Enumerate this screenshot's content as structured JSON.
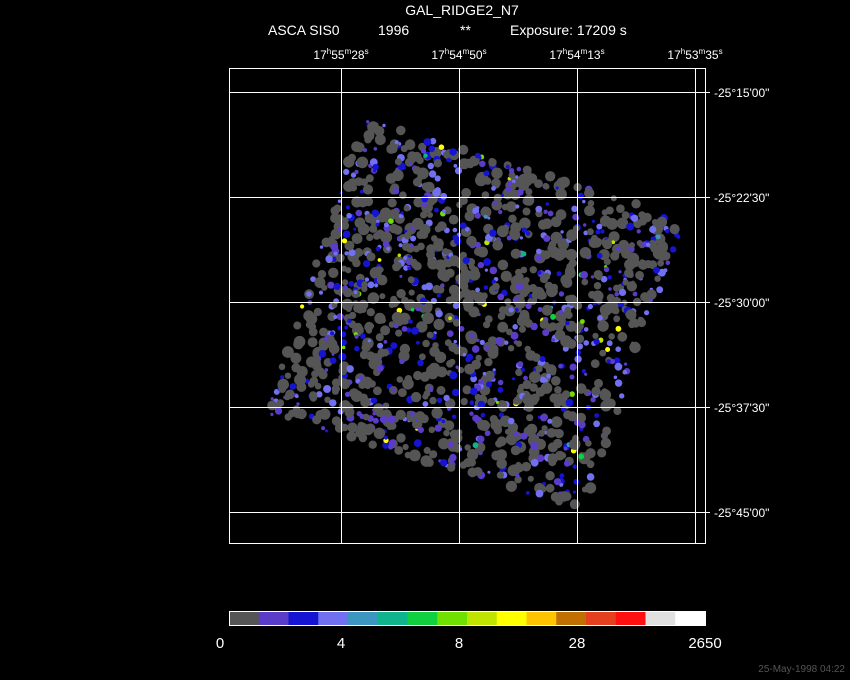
{
  "header": {
    "title": "GAL_RIDGE2_N7",
    "instrument": "ASCA SIS0",
    "year": "1996",
    "marker": "**",
    "exposure": "Exposure: 17209 s"
  },
  "ra_labels": [
    [
      "17",
      "h",
      "55",
      "m",
      "28",
      "s"
    ],
    [
      "17",
      "h",
      "54",
      "m",
      "50",
      "s"
    ],
    [
      "17",
      "h",
      "54",
      "m",
      "13",
      "s"
    ],
    [
      "17",
      "h",
      "53",
      "m",
      "35",
      "s"
    ]
  ],
  "dec_labels": [
    "-25°15'00\"",
    "-25°22'30\"",
    "-25°30'00\"",
    "-25°37'30\"",
    "-25°45'00\""
  ],
  "colorbar": {
    "colors": [
      "#555555",
      "#5a3cc8",
      "#1414d2",
      "#7070f0",
      "#3c96c0",
      "#10b48c",
      "#10d040",
      "#70e000",
      "#c0e400",
      "#ffff00",
      "#ffc400",
      "#c07000",
      "#e44020",
      "#ff1010",
      "#e0e0e0",
      "#ffffff"
    ],
    "labels": [
      "0",
      "4",
      "8",
      "28",
      "2650"
    ]
  },
  "footer": {
    "timestamp": "25-May-1998 04:22"
  }
}
